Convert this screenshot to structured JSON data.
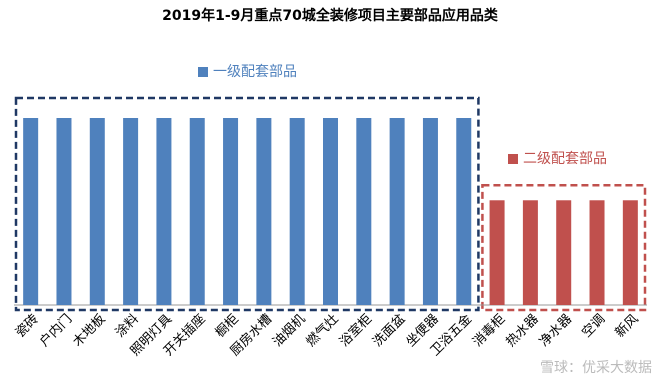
{
  "chart_data": {
    "type": "bar",
    "title": "2019年1-9月重点70城全装修项目主要部品应用品类",
    "categories": [
      "瓷砖",
      "户内门",
      "木地板",
      "涂料",
      "照明灯具",
      "开关插座",
      "橱柜",
      "厨房水槽",
      "油烟机",
      "燃气灶",
      "浴室柜",
      "洗面盆",
      "坐便器",
      "卫浴五金",
      "消毒柜",
      "热水器",
      "净水器",
      "空调",
      "新风"
    ],
    "series": [
      {
        "name": "一级配套部品",
        "color": "#4f81bd",
        "values": [
          100,
          100,
          100,
          100,
          100,
          100,
          100,
          100,
          100,
          100,
          100,
          100,
          100,
          100,
          null,
          null,
          null,
          null,
          null
        ]
      },
      {
        "name": "二级配套部品",
        "color": "#c0504d",
        "values": [
          null,
          null,
          null,
          null,
          null,
          null,
          null,
          null,
          null,
          null,
          null,
          null,
          null,
          null,
          56,
          56,
          56,
          56,
          56
        ]
      }
    ],
    "ylim": [
      0,
      100
    ],
    "watermark": "雪球：优采大数据"
  }
}
